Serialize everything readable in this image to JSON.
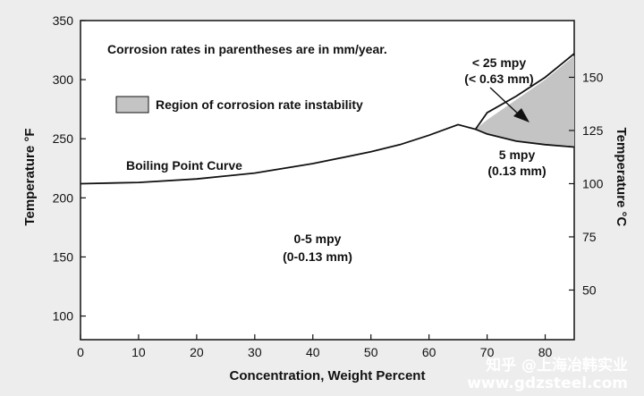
{
  "chart_data": {
    "type": "line",
    "xlabel": "Concentration, Weight Percent",
    "ylabel_left": "Temperature °F",
    "ylabel_right": "Temperature °C",
    "xlim": [
      0,
      85
    ],
    "ylim": [
      80,
      350
    ],
    "xticks": [
      0,
      10,
      20,
      30,
      40,
      50,
      60,
      70,
      80
    ],
    "yticks_left": [
      100,
      150,
      200,
      250,
      300,
      350
    ],
    "yticks_right": [
      50,
      75,
      100,
      125,
      150
    ],
    "grid": false,
    "series": [
      {
        "name": "Boiling Point Curve",
        "x": [
          0,
          10,
          20,
          30,
          40,
          50,
          55,
          60,
          65,
          68,
          70,
          75,
          80,
          85
        ],
        "y": [
          212,
          213,
          216,
          221,
          229,
          239,
          245,
          253,
          262,
          258,
          272,
          286,
          302,
          322
        ]
      },
      {
        "name": "5 mpy",
        "x": [
          68,
          70,
          75,
          80,
          85
        ],
        "y": [
          258,
          254,
          248,
          245,
          243
        ]
      }
    ],
    "shaded_region": {
      "label": "Region of corrosion rate instability",
      "color": "#c4c4c4",
      "x_upper": [
        68,
        70,
        75,
        80,
        85
      ],
      "y_upper": [
        258,
        266,
        283,
        300,
        320
      ],
      "x_lower": [
        68,
        70,
        75,
        80,
        85
      ],
      "y_lower": [
        258,
        254,
        248,
        245,
        243
      ]
    },
    "legend": {
      "note": "Corrosion rates in parentheses are in mm/year.",
      "entry": "Region of corrosion rate instability",
      "placement": "top-left"
    },
    "annotations": {
      "curve_label": "Boiling Point Curve",
      "upper_rate_1": "< 25 mpy",
      "upper_rate_2": "(< 0.63 mm)",
      "mid_rate_1": "5 mpy",
      "mid_rate_2": "(0.13 mm)",
      "low_rate_1": "0-5 mpy",
      "low_rate_2": "(0-0.13 mm)"
    }
  },
  "watermark": {
    "line1": "知乎 @上海冶韩实业",
    "line2": "www.gdzsteel.com"
  },
  "colors": {
    "background": "#ededed",
    "plot_area": "#ffffff",
    "ink": "#111111",
    "shade": "#c4c4c4"
  }
}
